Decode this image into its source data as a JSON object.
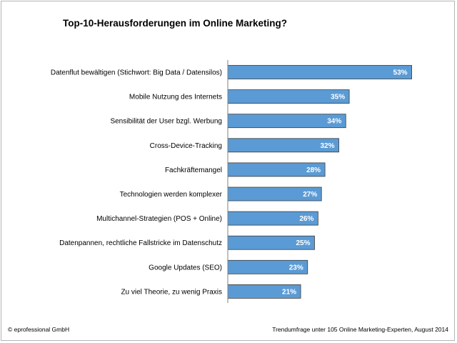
{
  "chart_data": {
    "type": "bar",
    "orientation": "horizontal",
    "title": "Top-10-Herausforderungen im Online Marketing?",
    "categories": [
      "Datenflut bewältigen (Stichwort: Big Data / Datensilos)",
      "Mobile Nutzung des Internets",
      "Sensibilität der User bzgl. Werbung",
      "Cross-Device-Tracking",
      "Fachkräftemangel",
      "Technologien werden komplexer",
      "Multichannel-Strategien (POS + Online)",
      "Datenpannen, rechtliche Fallstricke im Datenschutz",
      "Google Updates (SEO)",
      "Zu viel Theorie, zu wenig Praxis"
    ],
    "values": [
      53,
      35,
      34,
      32,
      28,
      27,
      26,
      25,
      23,
      21
    ],
    "value_labels": [
      "53%",
      "35%",
      "34%",
      "32%",
      "28%",
      "27%",
      "26%",
      "25%",
      "23%",
      "21%"
    ],
    "xlim": [
      0,
      60
    ],
    "grid": false,
    "bar_color": "#5b9bd5"
  },
  "footer": {
    "left": "© eprofessional  GmbH",
    "right": "Trendumfrage  unter 105 Online Marketing-Experten,  August 2014"
  }
}
